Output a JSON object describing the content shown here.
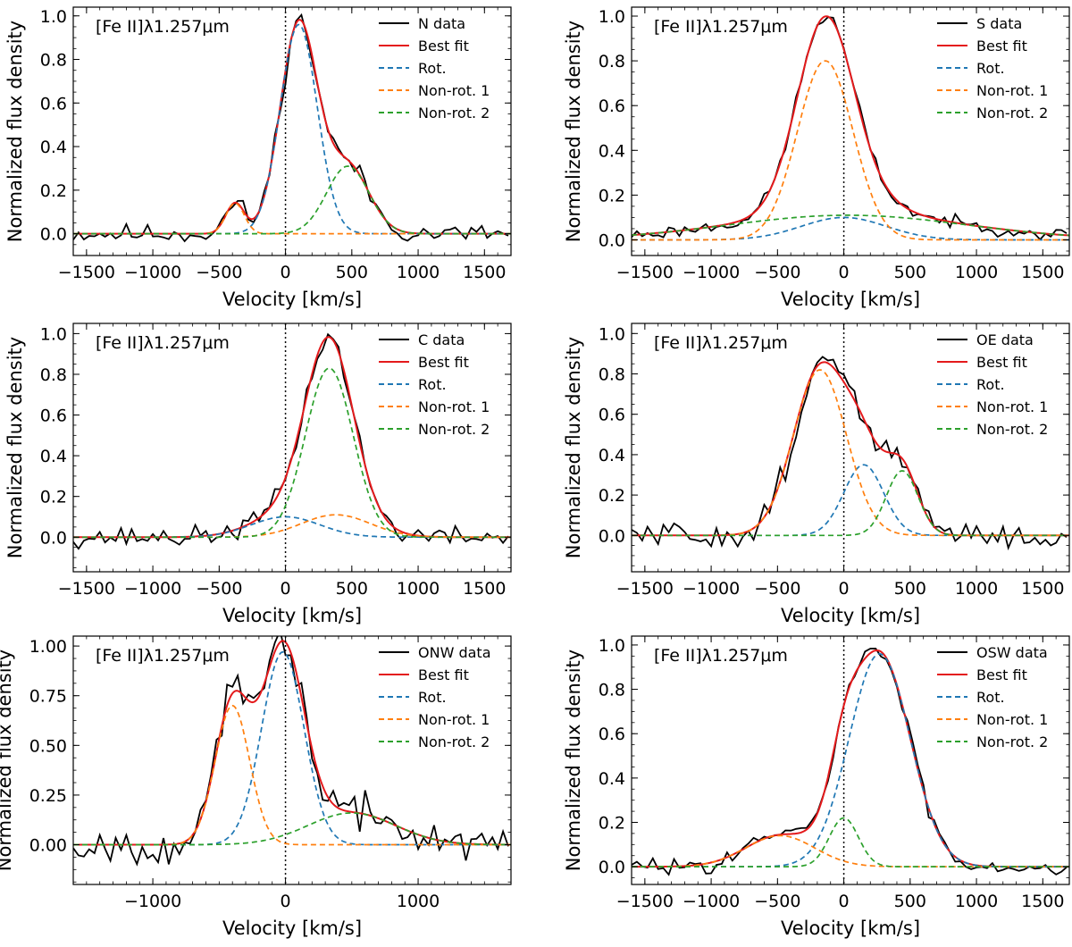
{
  "chart_data": [
    {
      "type": "line",
      "region": "N",
      "annotation": "[Fe II]λ1.257μm",
      "xlabel": "Velocity [km/s]",
      "ylabel": "Normalized flux density",
      "xlim": [
        -1600,
        1700
      ],
      "ylim": [
        -0.1,
        1.04
      ],
      "xticks": [
        -1500,
        -1000,
        -500,
        0,
        500,
        1000,
        1500
      ],
      "xticklabels": [
        "−1500",
        "−1000",
        "−500",
        "0",
        "500",
        "1000",
        "1500"
      ],
      "yticks": [
        0.0,
        0.2,
        0.4,
        0.6,
        0.8,
        1.0
      ],
      "yticklabels": [
        "0.0",
        "0.2",
        "0.4",
        "0.6",
        "0.8",
        "1.0"
      ],
      "legend_loc": "top-right",
      "legend": [
        "N data",
        "Best fit",
        "Rot.",
        "Non-rot. 1",
        "Non-rot. 2"
      ],
      "components": [
        {
          "key": "rot",
          "amp": 0.96,
          "mu": 100,
          "sigma": 140
        },
        {
          "key": "nonrot1",
          "amp": 0.14,
          "mu": -380,
          "sigma": 70
        },
        {
          "key": "nonrot2",
          "amp": 0.31,
          "mu": 470,
          "sigma": 160
        }
      ],
      "noise_amp": 0.022,
      "seed": 11
    },
    {
      "type": "line",
      "region": "S",
      "annotation": "[Fe II]λ1.257μm",
      "xlabel": "Velocity [km/s]",
      "ylabel": "Normalized flux density",
      "xlim": [
        -1600,
        1700
      ],
      "ylim": [
        -0.07,
        1.04
      ],
      "xticks": [
        -1500,
        -1000,
        -500,
        0,
        500,
        1000,
        1500
      ],
      "xticklabels": [
        "−1500",
        "−1000",
        "−500",
        "0",
        "500",
        "1000",
        "1500"
      ],
      "yticks": [
        0.0,
        0.2,
        0.4,
        0.6,
        0.8,
        1.0
      ],
      "yticklabels": [
        "0.0",
        "0.2",
        "0.4",
        "0.6",
        "0.8",
        "1.0"
      ],
      "legend_loc": "top-right",
      "legend": [
        "S data",
        "Best fit",
        "Rot.",
        "Non-rot. 1",
        "Non-rot. 2"
      ],
      "components": [
        {
          "key": "rot",
          "amp": 0.1,
          "mu": 0,
          "sigma": 320
        },
        {
          "key": "nonrot1",
          "amp": 0.8,
          "mu": -140,
          "sigma": 210
        },
        {
          "key": "nonrot2",
          "amp": 0.11,
          "mu": 30,
          "sigma": 900
        }
      ],
      "noise_amp": 0.014,
      "seed": 23
    },
    {
      "type": "line",
      "region": "C",
      "annotation": "[Fe II]λ1.257μm",
      "xlabel": "Velocity [km/s]",
      "ylabel": "Normalized flux density",
      "xlim": [
        -1600,
        1700
      ],
      "ylim": [
        -0.17,
        1.05
      ],
      "xticks": [
        -1500,
        -1000,
        -500,
        0,
        500,
        1000,
        1500
      ],
      "xticklabels": [
        "−1500",
        "−1000",
        "−500",
        "0",
        "500",
        "1000",
        "1500"
      ],
      "yticks": [
        0.0,
        0.2,
        0.4,
        0.6,
        0.8,
        1.0
      ],
      "yticklabels": [
        "0.0",
        "0.2",
        "0.4",
        "0.6",
        "0.8",
        "1.0"
      ],
      "legend_loc": "top-right",
      "legend": [
        "C data",
        "Best fit",
        "Rot.",
        "Non-rot. 1",
        "Non-rot. 2"
      ],
      "components": [
        {
          "key": "rot",
          "amp": 0.1,
          "mu": 0,
          "sigma": 260
        },
        {
          "key": "nonrot1",
          "amp": 0.11,
          "mu": 380,
          "sigma": 260
        },
        {
          "key": "nonrot2",
          "amp": 0.83,
          "mu": 330,
          "sigma": 180
        }
      ],
      "noise_amp": 0.025,
      "seed": 37
    },
    {
      "type": "line",
      "region": "OE",
      "annotation": "[Fe II]λ1.257μm",
      "xlabel": "Velocity [km/s]",
      "ylabel": "Normalized flux density",
      "xlim": [
        -1600,
        1700
      ],
      "ylim": [
        -0.18,
        1.05
      ],
      "xticks": [
        -1500,
        -1000,
        -500,
        0,
        500,
        1000,
        1500
      ],
      "xticklabels": [
        "−1500",
        "−1000",
        "−500",
        "0",
        "500",
        "1000",
        "1500"
      ],
      "yticks": [
        0.0,
        0.2,
        0.4,
        0.6,
        0.8,
        1.0
      ],
      "yticklabels": [
        "0.0",
        "0.2",
        "0.4",
        "0.6",
        "0.8",
        "1.0"
      ],
      "legend_loc": "top-right",
      "legend": [
        "OE data",
        "Best fit",
        "Rot.",
        "Non-rot. 1",
        "Non-rot. 2"
      ],
      "components": [
        {
          "key": "rot",
          "amp": 0.35,
          "mu": 150,
          "sigma": 150
        },
        {
          "key": "nonrot1",
          "amp": 0.82,
          "mu": -180,
          "sigma": 200
        },
        {
          "key": "nonrot2",
          "amp": 0.32,
          "mu": 440,
          "sigma": 120
        }
      ],
      "noise_amp": 0.035,
      "seed": 51
    },
    {
      "type": "line",
      "region": "ONW",
      "annotation": "[Fe II]λ1.257μm",
      "xlabel": "Velocity [km/s]",
      "ylabel": "Normalized flux density",
      "xlim": [
        -1600,
        1700
      ],
      "ylim": [
        -0.2,
        1.05
      ],
      "xticks": [
        -1000,
        0,
        1000
      ],
      "xticklabels": [
        "−1000",
        "0",
        "1000"
      ],
      "yticks": [
        0.0,
        0.25,
        0.5,
        0.75,
        1.0
      ],
      "yticklabels": [
        "0.00",
        "0.25",
        "0.50",
        "0.75",
        "1.00"
      ],
      "legend_loc": "top-right",
      "legend": [
        "ONW data",
        "Best fit",
        "Rot.",
        "Non-rot. 1",
        "Non-rot. 2"
      ],
      "components": [
        {
          "key": "rot",
          "amp": 0.97,
          "mu": -20,
          "sigma": 160
        },
        {
          "key": "nonrot1",
          "amp": 0.7,
          "mu": -400,
          "sigma": 130
        },
        {
          "key": "nonrot2",
          "amp": 0.16,
          "mu": 500,
          "sigma": 330
        }
      ],
      "noise_amp": 0.045,
      "seed": 67
    },
    {
      "type": "line",
      "region": "OSW",
      "annotation": "[Fe II]λ1.257μm",
      "xlabel": "Velocity [km/s]",
      "ylabel": "Normalized flux density",
      "xlim": [
        -1600,
        1700
      ],
      "ylim": [
        -0.08,
        1.04
      ],
      "xticks": [
        -1500,
        -1000,
        -500,
        0,
        500,
        1000,
        1500
      ],
      "xticklabels": [
        "−1500",
        "−1000",
        "−500",
        "0",
        "500",
        "1000",
        "1500"
      ],
      "yticks": [
        0.0,
        0.2,
        0.4,
        0.6,
        0.8,
        1.0
      ],
      "yticklabels": [
        "0.0",
        "0.2",
        "0.4",
        "0.6",
        "0.8",
        "1.0"
      ],
      "legend_loc": "top-right",
      "legend": [
        "OSW data",
        "Best fit",
        "Rot.",
        "Non-rot. 1",
        "Non-rot. 2"
      ],
      "components": [
        {
          "key": "rot",
          "amp": 0.96,
          "mu": 270,
          "sigma": 230
        },
        {
          "key": "nonrot1",
          "amp": 0.14,
          "mu": -480,
          "sigma": 260
        },
        {
          "key": "nonrot2",
          "amp": 0.22,
          "mu": 0,
          "sigma": 110
        }
      ],
      "noise_amp": 0.018,
      "seed": 83
    }
  ],
  "series_styles": {
    "data": {
      "color": "#000000",
      "dash": ""
    },
    "fit": {
      "color": "#e41a1c",
      "dash": ""
    },
    "rot": {
      "color": "#1f77b4",
      "dash": "6,4"
    },
    "nonrot1": {
      "color": "#ff7f0e",
      "dash": "6,4"
    },
    "nonrot2": {
      "color": "#2ca02c",
      "dash": "6,4"
    }
  }
}
